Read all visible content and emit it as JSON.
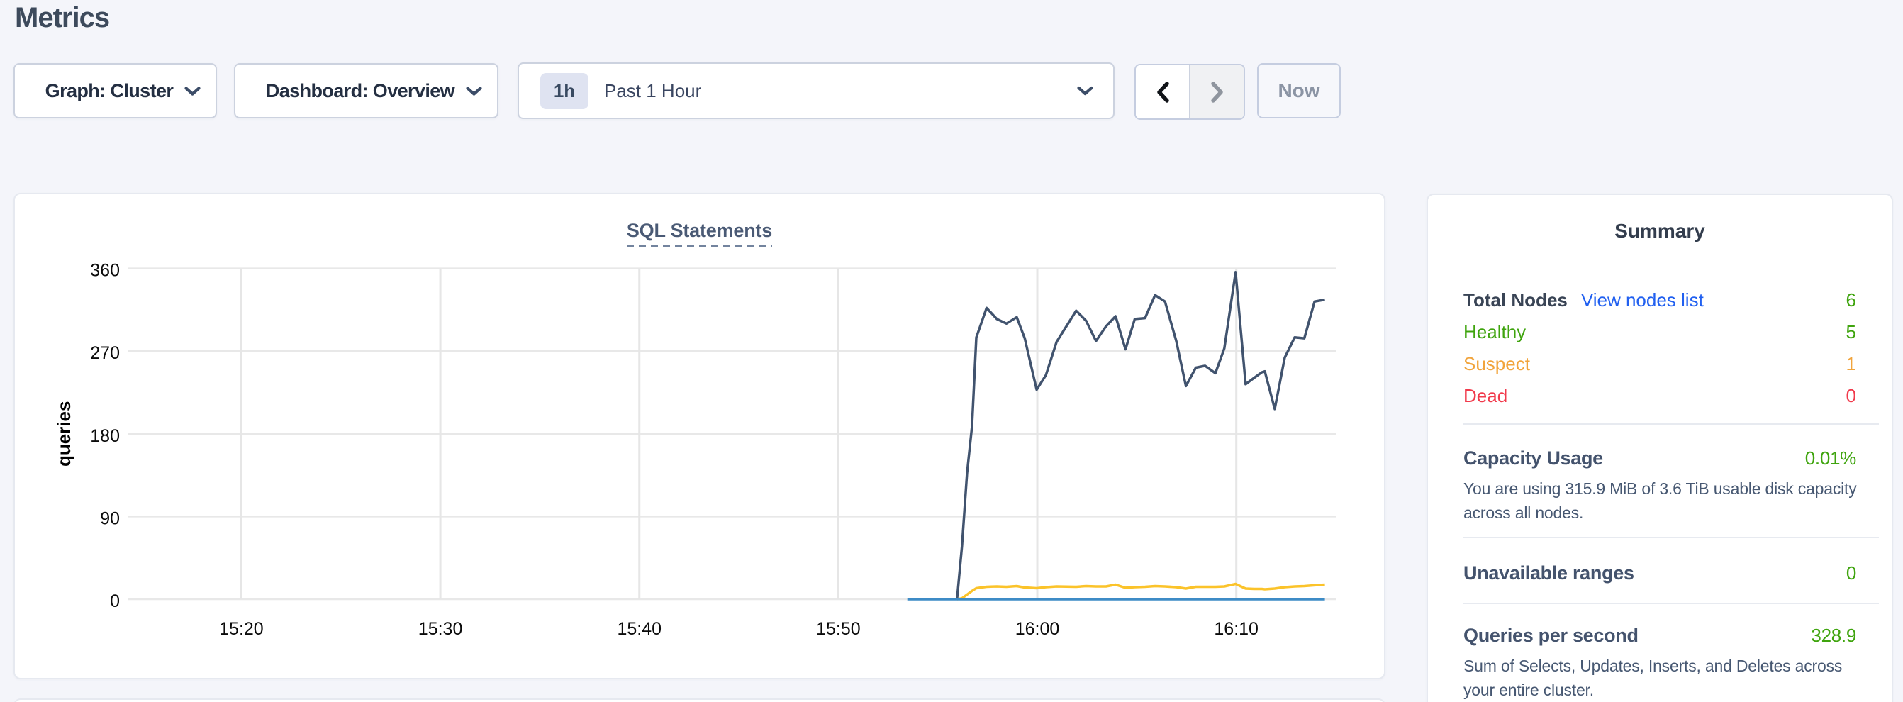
{
  "header": {
    "title": "Metrics"
  },
  "controls": {
    "graph_dropdown": {
      "label": "Graph: Cluster"
    },
    "dashboard_dropdown": {
      "label": "Dashboard: Overview"
    },
    "time_selector": {
      "badge": "1h",
      "label": "Past 1 Hour"
    },
    "now_button_label": "Now"
  },
  "chart_data": {
    "type": "line",
    "title": "SQL Statements",
    "xlabel": "",
    "ylabel": "queries",
    "ylim": [
      0,
      360
    ],
    "yticks": [
      0,
      90,
      180,
      270,
      360
    ],
    "xticks": [
      "15:20",
      "15:30",
      "15:40",
      "15:50",
      "16:00",
      "16:10"
    ],
    "x_domain": [
      "15:14:17",
      "16:15:00"
    ],
    "grid": true,
    "legend": "none",
    "series": [
      {
        "name": "series-dark-blue",
        "color": "#41536e",
        "points": [
          [
            "15:55:58",
            0
          ],
          [
            "15:56:13",
            58
          ],
          [
            "15:56:28",
            137
          ],
          [
            "15:56:43",
            188
          ],
          [
            "15:56:56",
            285
          ],
          [
            "15:57:27",
            317
          ],
          [
            "15:57:58",
            305
          ],
          [
            "15:58:27",
            300
          ],
          [
            "15:58:58",
            307
          ],
          [
            "15:59:22",
            284
          ],
          [
            "15:59:58",
            228
          ],
          [
            "16:00:26",
            244
          ],
          [
            "16:00:58",
            280
          ],
          [
            "16:01:57",
            314
          ],
          [
            "16:02:27",
            303
          ],
          [
            "16:02:57",
            281
          ],
          [
            "16:03:27",
            297
          ],
          [
            "16:03:56",
            308
          ],
          [
            "16:04:26",
            272
          ],
          [
            "16:04:54",
            305
          ],
          [
            "16:05:25",
            306
          ],
          [
            "16:05:55",
            331
          ],
          [
            "16:06:25",
            324
          ],
          [
            "16:06:59",
            281
          ],
          [
            "16:07:28",
            232
          ],
          [
            "16:07:58",
            252
          ],
          [
            "16:08:26",
            254
          ],
          [
            "16:08:57",
            246
          ],
          [
            "16:09:24",
            273
          ],
          [
            "16:09:58",
            356
          ],
          [
            "16:10:28",
            234
          ],
          [
            "16:10:54",
            241
          ],
          [
            "16:11:17",
            247
          ],
          [
            "16:11:26",
            248
          ],
          [
            "16:11:56",
            207
          ],
          [
            "16:12:26",
            263
          ],
          [
            "16:12:56",
            285
          ],
          [
            "16:13:25",
            284
          ],
          [
            "16:13:56",
            324
          ],
          [
            "16:14:27",
            326
          ]
        ]
      },
      {
        "name": "series-yellow",
        "color": "#fbc32a",
        "points": [
          [
            "15:55:58",
            0
          ],
          [
            "15:56:13",
            1
          ],
          [
            "15:56:28",
            5
          ],
          [
            "15:56:43",
            9
          ],
          [
            "15:56:56",
            12
          ],
          [
            "15:57:27",
            13.5
          ],
          [
            "15:57:58",
            13.9
          ],
          [
            "15:58:27",
            13.5
          ],
          [
            "15:58:58",
            14.3
          ],
          [
            "15:59:22",
            12.7
          ],
          [
            "15:59:58",
            12.0
          ],
          [
            "16:00:26",
            13.1
          ],
          [
            "16:00:58",
            13.9
          ],
          [
            "16:01:57",
            13.5
          ],
          [
            "16:02:27",
            14.3
          ],
          [
            "16:02:57",
            13.9
          ],
          [
            "16:03:27",
            13.9
          ],
          [
            "16:03:56",
            15.8
          ],
          [
            "16:04:26",
            12.4
          ],
          [
            "16:04:54",
            13.1
          ],
          [
            "16:05:25",
            13.5
          ],
          [
            "16:05:55",
            14.3
          ],
          [
            "16:06:25",
            13.9
          ],
          [
            "16:06:59",
            13.1
          ],
          [
            "16:07:28",
            11.6
          ],
          [
            "16:07:58",
            13.5
          ],
          [
            "16:08:26",
            13.5
          ],
          [
            "16:08:57",
            13.5
          ],
          [
            "16:09:24",
            13.9
          ],
          [
            "16:09:58",
            16.6
          ],
          [
            "16:10:28",
            11.6
          ],
          [
            "16:10:54",
            11.2
          ],
          [
            "16:11:17",
            11.2
          ],
          [
            "16:11:26",
            10.8
          ],
          [
            "16:11:56",
            11.6
          ],
          [
            "16:12:26",
            13.1
          ],
          [
            "16:12:56",
            13.9
          ],
          [
            "16:13:25",
            14.3
          ],
          [
            "16:13:56",
            15.1
          ],
          [
            "16:14:27",
            15.8
          ]
        ]
      },
      {
        "name": "series-light-blue",
        "color": "#3d8bc6",
        "points": [
          [
            "15:53:28",
            0
          ],
          [
            "16:14:27",
            0
          ]
        ]
      }
    ]
  },
  "summary": {
    "title": "Summary",
    "total_nodes": {
      "label": "Total Nodes",
      "link": "View nodes list",
      "value": "6"
    },
    "node_status": [
      {
        "label": "Healthy",
        "value": "5"
      },
      {
        "label": "Suspect",
        "value": "1"
      },
      {
        "label": "Dead",
        "value": "0"
      }
    ],
    "capacity": {
      "label": "Capacity Usage",
      "value": "0.01%",
      "description": "You are using 315.9 MiB of 3.6 TiB usable disk capacity across all nodes."
    },
    "unavailable": {
      "label": "Unavailable ranges",
      "value": "0"
    },
    "qps": {
      "label": "Queries per second",
      "value": "328.9",
      "description": "Sum of Selects, Updates, Inserts, and Deletes across your entire cluster."
    }
  },
  "colors": {
    "green": "#3fa40e",
    "orange": "#f1a43c",
    "red": "#f13a4c",
    "link_blue": "#2160f0",
    "grid": "#e8e8e8",
    "axis_text": "#0b0b0b"
  }
}
